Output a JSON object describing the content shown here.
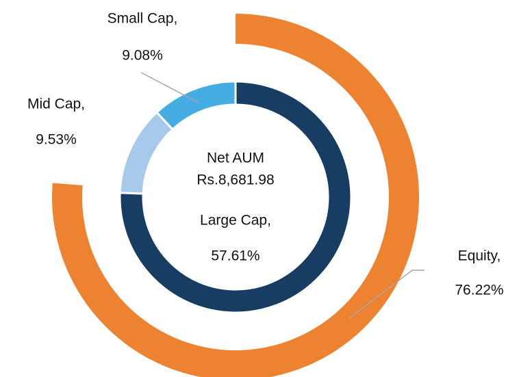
{
  "chart_data": {
    "type": "nested-donut",
    "center_label": [
      "Net AUM",
      "Rs.8,681.98"
    ],
    "rings": [
      {
        "labels": [
          "Equity,"
        ],
        "values": [
          76.22
        ],
        "value_labels": [
          "76.22%"
        ],
        "colors": [
          "#ed8330"
        ],
        "lim": [
          0,
          100
        ]
      },
      {
        "labels": [
          "Large Cap,",
          "Mid Cap,",
          "Small Cap,"
        ],
        "values": [
          57.61,
          9.53,
          9.08
        ],
        "value_labels": [
          "57.61%",
          "9.53%",
          "9.08%"
        ],
        "colors": [
          "#173d63",
          "#a7c9ec",
          "#45ade2"
        ]
      }
    ]
  }
}
